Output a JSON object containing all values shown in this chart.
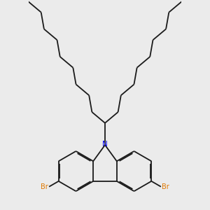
{
  "background_color": "#ebebeb",
  "bond_color": "#1a1a1a",
  "N_color": "#0000EE",
  "Br_color": "#E07800",
  "bond_width": 1.3,
  "figsize": [
    3.0,
    3.0
  ],
  "dpi": 100,
  "xlim": [
    -3.8,
    3.8
  ],
  "ylim": [
    -3.2,
    7.2
  ]
}
